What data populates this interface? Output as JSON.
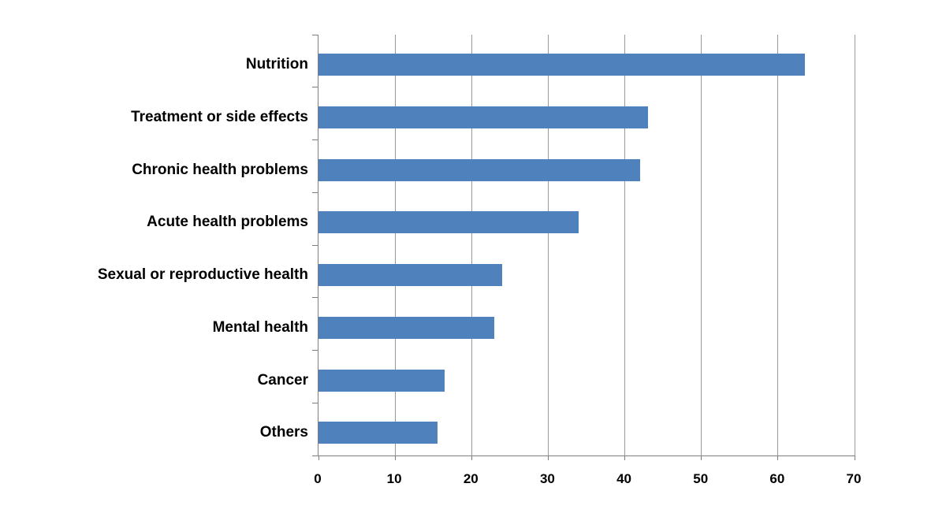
{
  "chart_data": {
    "type": "bar",
    "orientation": "horizontal",
    "title": "",
    "xlabel": "",
    "ylabel": "",
    "categories": [
      "Nutrition",
      "Treatment or side effects",
      "Chronic health problems",
      "Acute health problems",
      "Sexual or reproductive health",
      "Mental health",
      "Cancer",
      "Others"
    ],
    "values": [
      63.5,
      43,
      42,
      34,
      24,
      23,
      16.5,
      15.5
    ],
    "xlim": [
      0,
      70
    ],
    "xticks": [
      0,
      10,
      20,
      30,
      40,
      50,
      60,
      70
    ],
    "grid": true,
    "legend": "none",
    "bar_color": "#4f81bd",
    "axis_color": "#7f7f7f",
    "gridline_color": "#9a9a9a",
    "label_color": "#000000"
  }
}
